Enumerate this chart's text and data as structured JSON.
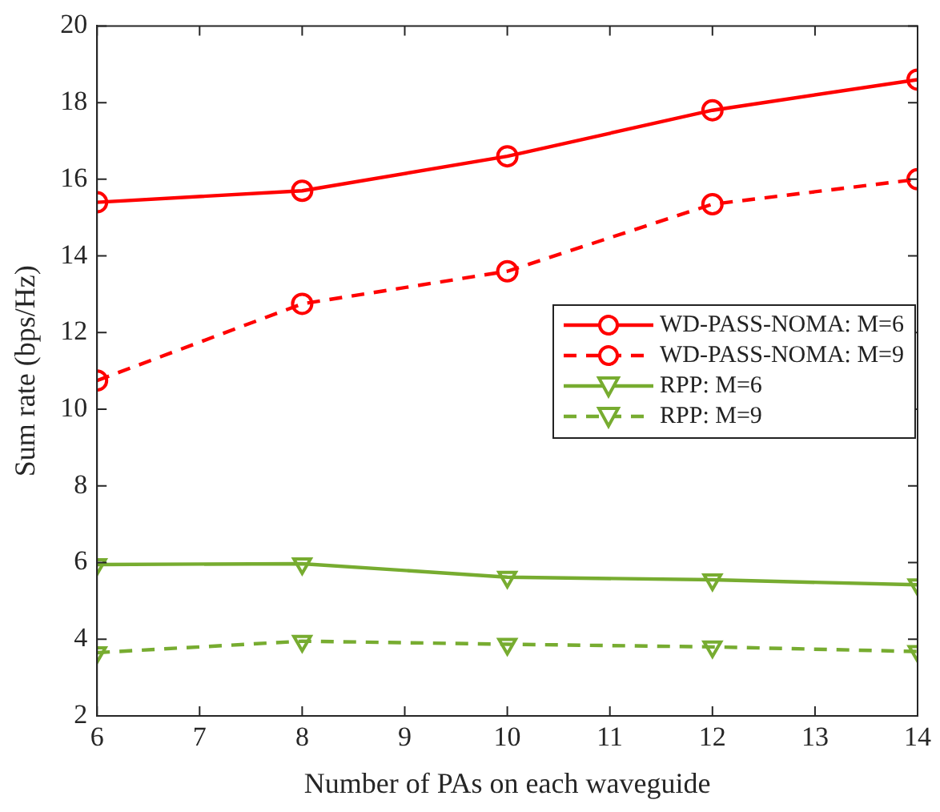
{
  "chart_data": {
    "type": "line",
    "xlabel": "Number of PAs on each waveguide",
    "ylabel": "Sum rate (bps/Hz)",
    "x": [
      6,
      8,
      10,
      12,
      14
    ],
    "series": [
      {
        "name": "WD-PASS-NOMA: M=6",
        "color": "#ff0000",
        "marker": "circle",
        "line_style": "solid",
        "values": [
          15.4,
          15.7,
          16.6,
          17.8,
          18.6
        ]
      },
      {
        "name": "WD-PASS-NOMA: M=9",
        "color": "#ff0000",
        "marker": "circle",
        "line_style": "dashed",
        "values": [
          10.75,
          12.75,
          13.6,
          15.35,
          16.0
        ]
      },
      {
        "name": "RPP: M=6",
        "color": "#77ac30",
        "marker": "triangle",
        "line_style": "solid",
        "values": [
          5.95,
          5.97,
          5.62,
          5.55,
          5.42
        ]
      },
      {
        "name": "RPP: M=9",
        "color": "#77ac30",
        "marker": "triangle",
        "line_style": "dashed",
        "values": [
          3.65,
          3.95,
          3.87,
          3.8,
          3.68
        ]
      }
    ],
    "xlim": [
      6,
      14
    ],
    "xticks": [
      6,
      7,
      8,
      9,
      10,
      11,
      12,
      13,
      14
    ],
    "ylim": [
      2,
      20
    ],
    "yticks": [
      2,
      4,
      6,
      8,
      10,
      12,
      14,
      16,
      18,
      20
    ],
    "grid": false,
    "legend": "right"
  }
}
